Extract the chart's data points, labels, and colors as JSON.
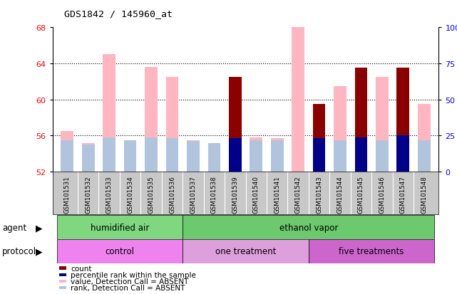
{
  "title": "GDS1842 / 145960_at",
  "samples": [
    "GSM101531",
    "GSM101532",
    "GSM101533",
    "GSM101534",
    "GSM101535",
    "GSM101536",
    "GSM101537",
    "GSM101538",
    "GSM101539",
    "GSM101540",
    "GSM101541",
    "GSM101542",
    "GSM101543",
    "GSM101544",
    "GSM101545",
    "GSM101546",
    "GSM101547",
    "GSM101548"
  ],
  "value_absent": [
    56.5,
    55.2,
    65.0,
    55.2,
    63.6,
    62.5,
    55.5,
    55.0,
    null,
    55.8,
    55.7,
    68.5,
    null,
    61.5,
    null,
    62.5,
    null,
    59.5
  ],
  "rank_absent": [
    55.5,
    55.0,
    55.8,
    55.5,
    55.8,
    55.7,
    55.4,
    55.2,
    null,
    55.5,
    55.5,
    null,
    55.5,
    55.5,
    null,
    55.5,
    null,
    55.5
  ],
  "count_val": [
    null,
    null,
    null,
    null,
    null,
    null,
    null,
    null,
    62.5,
    null,
    null,
    null,
    59.5,
    null,
    63.5,
    null,
    63.5,
    null
  ],
  "rank_present": [
    null,
    null,
    null,
    null,
    null,
    null,
    null,
    null,
    55.7,
    null,
    null,
    null,
    55.7,
    null,
    55.8,
    null,
    56.0,
    null
  ],
  "ymin": 52,
  "ymax": 68,
  "yticks_left": [
    52,
    56,
    60,
    64,
    68
  ],
  "yticks_right_pos": [
    52,
    56,
    60,
    64,
    68
  ],
  "yticks_right_labels": [
    "0",
    "25",
    "50",
    "75",
    "100%"
  ],
  "grid_lines": [
    56,
    60,
    64
  ],
  "bar_width": 0.6,
  "colors": {
    "count": "#8B0000",
    "rank_present": "#00008B",
    "value_absent": "#FFB6C1",
    "rank_absent": "#B0C4DE",
    "label_bg": "#C8C8C8",
    "plot_bg": "#FFFFFF",
    "agent_air": "#7FD87F",
    "agent_ethanol": "#6DC96D",
    "protocol_control": "#EE82EE",
    "protocol_one": "#DDA0DD",
    "protocol_five": "#CC66CC"
  },
  "agent_groups": [
    {
      "label": "humidified air",
      "start": 0,
      "end": 6
    },
    {
      "label": "ethanol vapor",
      "start": 6,
      "end": 18
    }
  ],
  "protocol_groups": [
    {
      "label": "control",
      "start": 0,
      "end": 6
    },
    {
      "label": "one treatment",
      "start": 6,
      "end": 12
    },
    {
      "label": "five treatments",
      "start": 12,
      "end": 18
    }
  ]
}
